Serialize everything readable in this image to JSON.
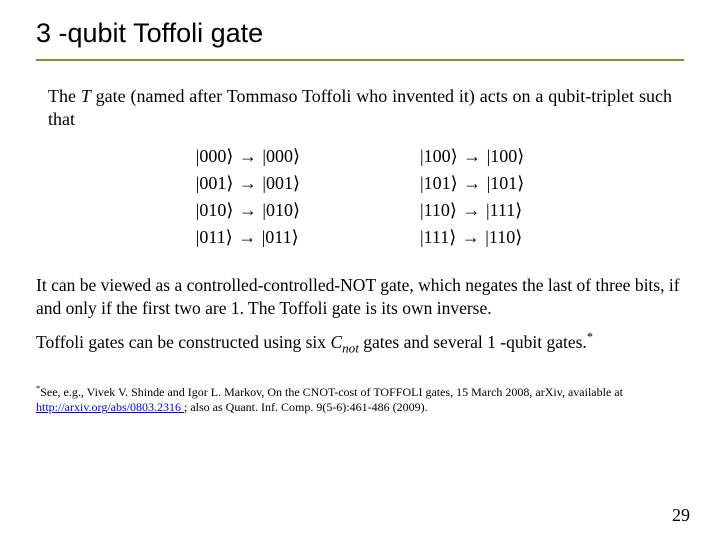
{
  "title": "3 -qubit Toffoli gate",
  "rule_color": "#8a8f2e",
  "intro_prefix": "The ",
  "intro_gate_symbol": "T",
  "intro_suffix": " gate (named after Tommaso Toffoli who invented it) acts on a qubit-triplet such that",
  "map_left": [
    {
      "from": "000",
      "to": "000"
    },
    {
      "from": "001",
      "to": "001"
    },
    {
      "from": "010",
      "to": "010"
    },
    {
      "from": "011",
      "to": "011"
    }
  ],
  "map_right": [
    {
      "from": "100",
      "to": "100"
    },
    {
      "from": "101",
      "to": "101"
    },
    {
      "from": "110",
      "to": "111"
    },
    {
      "from": "111",
      "to": "110"
    }
  ],
  "desc1": "It can be viewed as a controlled-controlled-NOT gate, which negates the last of three bits, if and only if the first two are 1. The Toffoli gate is its own inverse.",
  "desc2_prefix": "Toffoli gates can be constructed using six ",
  "desc2_cnot_base": "C",
  "desc2_cnot_sub": "not",
  "desc2_suffix": " gates and several 1 -qubit gates.",
  "footnote_star": "*",
  "footnote_pre": "See, e.g., Vivek V. Shinde and Igor L. Markov,  On the CNOT-cost of TOFFOLI gates, 15 March 2008, arXiv, available at ",
  "footnote_link_text": "http://arxiv.org/abs/0803.2316 ",
  "footnote_post": "; also as  Quant. Inf. Comp. 9(5-6):461-486 (2009).",
  "page_number": "29",
  "text_color": "#000000"
}
